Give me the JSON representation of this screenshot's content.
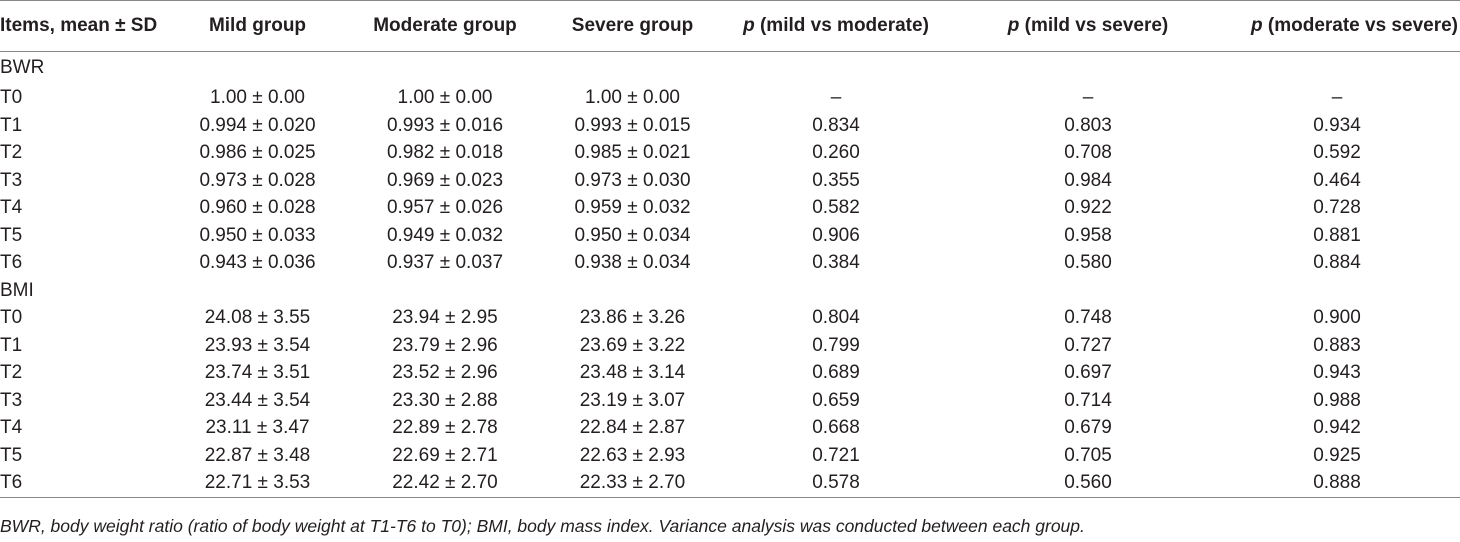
{
  "table": {
    "header": {
      "items": "Items, mean ± SD",
      "mild": "Mild group",
      "moderate": "Moderate group",
      "severe": "Severe group",
      "p_label": "p",
      "p_mild_moderate": "(mild vs moderate)",
      "p_mild_severe": "(mild vs severe)",
      "p_moderate_severe": "(moderate vs severe)"
    },
    "sections": [
      {
        "label": "BWR",
        "rows": [
          {
            "item": "T0",
            "mild": "1.00 ± 0.00",
            "moderate": "1.00 ± 0.00",
            "severe": "1.00 ± 0.00",
            "p1": "–",
            "p2": "–",
            "p3": "–"
          },
          {
            "item": "T1",
            "mild": "0.994 ± 0.020",
            "moderate": "0.993 ± 0.016",
            "severe": "0.993 ± 0.015",
            "p1": "0.834",
            "p2": "0.803",
            "p3": "0.934"
          },
          {
            "item": "T2",
            "mild": "0.986 ± 0.025",
            "moderate": "0.982 ± 0.018",
            "severe": "0.985 ± 0.021",
            "p1": "0.260",
            "p2": "0.708",
            "p3": "0.592"
          },
          {
            "item": "T3",
            "mild": "0.973 ± 0.028",
            "moderate": "0.969 ± 0.023",
            "severe": "0.973 ± 0.030",
            "p1": "0.355",
            "p2": "0.984",
            "p3": "0.464"
          },
          {
            "item": "T4",
            "mild": "0.960 ± 0.028",
            "moderate": "0.957 ± 0.026",
            "severe": "0.959 ± 0.032",
            "p1": "0.582",
            "p2": "0.922",
            "p3": "0.728"
          },
          {
            "item": "T5",
            "mild": "0.950 ± 0.033",
            "moderate": "0.949 ± 0.032",
            "severe": "0.950 ± 0.034",
            "p1": "0.906",
            "p2": "0.958",
            "p3": "0.881"
          },
          {
            "item": "T6",
            "mild": "0.943 ± 0.036",
            "moderate": "0.937 ± 0.037",
            "severe": "0.938 ± 0.034",
            "p1": "0.384",
            "p2": "0.580",
            "p3": "0.884"
          }
        ]
      },
      {
        "label": "BMI",
        "rows": [
          {
            "item": "T0",
            "mild": "24.08 ± 3.55",
            "moderate": "23.94 ± 2.95",
            "severe": "23.86 ± 3.26",
            "p1": "0.804",
            "p2": "0.748",
            "p3": "0.900"
          },
          {
            "item": "T1",
            "mild": "23.93 ± 3.54",
            "moderate": "23.79 ± 2.96",
            "severe": "23.69 ± 3.22",
            "p1": "0.799",
            "p2": "0.727",
            "p3": "0.883"
          },
          {
            "item": "T2",
            "mild": "23.74 ± 3.51",
            "moderate": "23.52 ± 2.96",
            "severe": "23.48 ± 3.14",
            "p1": "0.689",
            "p2": "0.697",
            "p3": "0.943"
          },
          {
            "item": "T3",
            "mild": "23.44 ± 3.54",
            "moderate": "23.30 ± 2.88",
            "severe": "23.19 ± 3.07",
            "p1": "0.659",
            "p2": "0.714",
            "p3": "0.988"
          },
          {
            "item": "T4",
            "mild": "23.11 ± 3.47",
            "moderate": "22.89 ± 2.78",
            "severe": "22.84 ± 2.87",
            "p1": "0.668",
            "p2": "0.679",
            "p3": "0.942"
          },
          {
            "item": "T5",
            "mild": "22.87 ± 3.48",
            "moderate": "22.69 ± 2.71",
            "severe": "22.63 ± 2.93",
            "p1": "0.721",
            "p2": "0.705",
            "p3": "0.925"
          },
          {
            "item": "T6",
            "mild": "22.71 ± 3.53",
            "moderate": "22.42 ± 2.70",
            "severe": "22.33 ± 2.70",
            "p1": "0.578",
            "p2": "0.560",
            "p3": "0.888"
          }
        ]
      }
    ]
  },
  "footnote": "BWR, body weight ratio (ratio of body weight at T1-T6 to T0); BMI, body mass index. Variance analysis was conducted between each group."
}
